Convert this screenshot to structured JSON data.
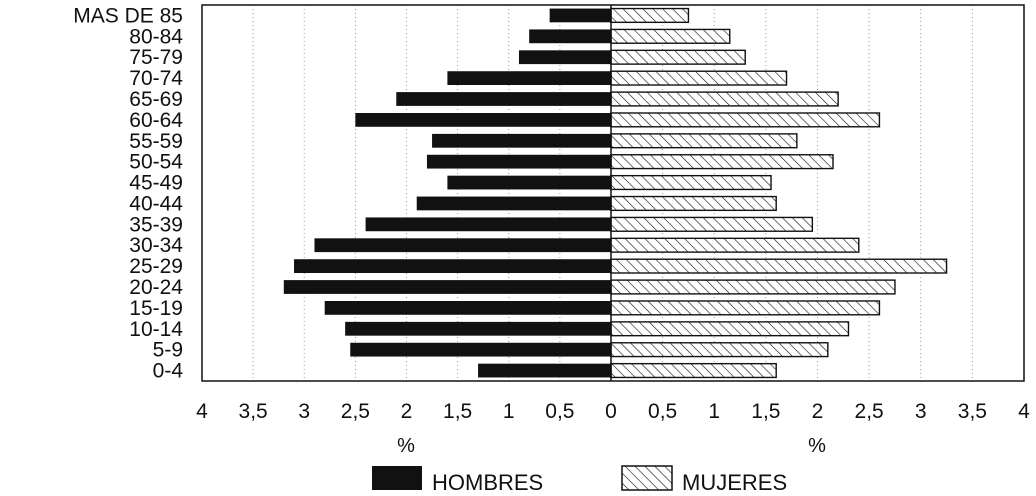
{
  "chart_data": {
    "type": "bar",
    "orientation": "horizontal",
    "subtype": "population-pyramid",
    "categories": [
      "MAS DE 85",
      "80-84",
      "75-79",
      "70-74",
      "65-69",
      "60-64",
      "55-59",
      "50-54",
      "45-49",
      "40-44",
      "35-39",
      "30-34",
      "25-29",
      "20-24",
      "15-19",
      "10-14",
      "5-9",
      "0-4"
    ],
    "series": [
      {
        "name": "HOMBRES",
        "side": "left",
        "color": "#111111",
        "pattern": "solid",
        "values": [
          0.6,
          0.8,
          0.9,
          1.6,
          2.1,
          2.5,
          1.75,
          1.8,
          1.6,
          1.9,
          2.4,
          2.9,
          3.1,
          3.2,
          2.8,
          2.6,
          2.55,
          1.3
        ]
      },
      {
        "name": "MUJERES",
        "side": "right",
        "color": "#111111",
        "pattern": "diagonal-hatch",
        "values": [
          0.75,
          1.15,
          1.3,
          1.7,
          2.2,
          2.6,
          1.8,
          2.15,
          1.55,
          1.6,
          1.95,
          2.4,
          3.25,
          2.75,
          2.6,
          2.3,
          2.1,
          1.6
        ]
      }
    ],
    "xlim_left": [
      0,
      4
    ],
    "xlim_right": [
      0,
      4
    ],
    "x_ticks_left": [
      "4",
      "3,5",
      "3",
      "2,5",
      "2",
      "1,5",
      "1",
      "0,5"
    ],
    "x_ticks_right": [
      "0",
      "0,5",
      "1",
      "1,5",
      "2",
      "2,5",
      "3",
      "3,5",
      "4"
    ],
    "xlabel_left": "%",
    "xlabel_right": "%",
    "grid": "vertical dotted",
    "legend_position": "bottom-center",
    "legend": [
      "HOMBRES",
      "MUJERES"
    ]
  }
}
